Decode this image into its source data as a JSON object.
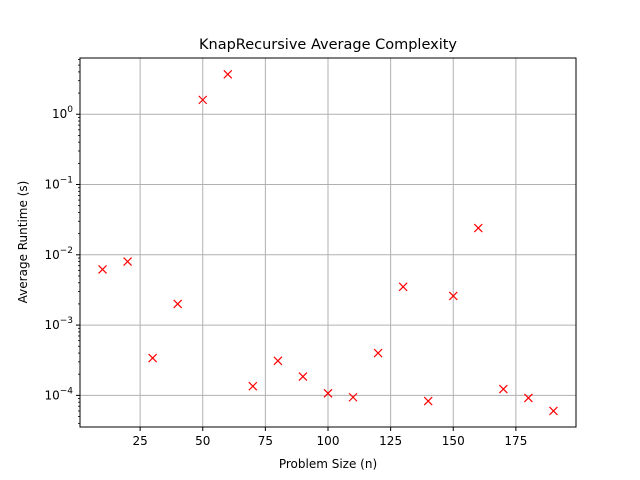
{
  "chart_data": {
    "type": "scatter",
    "title": "KnapRecursive Average Complexity",
    "xlabel": "Problem Size (n)",
    "ylabel": "Average Runtime (s)",
    "xlim": [
      1,
      199
    ],
    "ylim_log10": [
      -4.45,
      0.8
    ],
    "y_scale": "log",
    "grid": true,
    "x_ticks": [
      25,
      50,
      75,
      100,
      125,
      150,
      175
    ],
    "y_ticks": [
      {
        "exp": 0,
        "label_base": "10",
        "label_exp": "0"
      },
      {
        "exp": -1,
        "label_base": "10",
        "label_exp": "−1"
      },
      {
        "exp": -2,
        "label_base": "10",
        "label_exp": "−2"
      },
      {
        "exp": -3,
        "label_base": "10",
        "label_exp": "−3"
      },
      {
        "exp": -4,
        "label_base": "10",
        "label_exp": "−4"
      }
    ],
    "marker": "x",
    "color": "#ff0000",
    "series": [
      {
        "x": [
          10,
          20,
          30,
          40,
          50,
          60,
          70,
          80,
          90,
          100,
          110,
          120,
          130,
          140,
          150,
          160,
          170,
          180,
          190
        ],
        "y": [
          0.0062,
          0.008,
          0.00034,
          0.002,
          1.6,
          3.7,
          0.000135,
          0.00031,
          0.000185,
          0.000107,
          9.4e-05,
          0.0004,
          0.0035,
          8.3e-05,
          0.0026,
          0.024,
          0.000123,
          9.2e-05,
          6e-05
        ]
      }
    ]
  }
}
